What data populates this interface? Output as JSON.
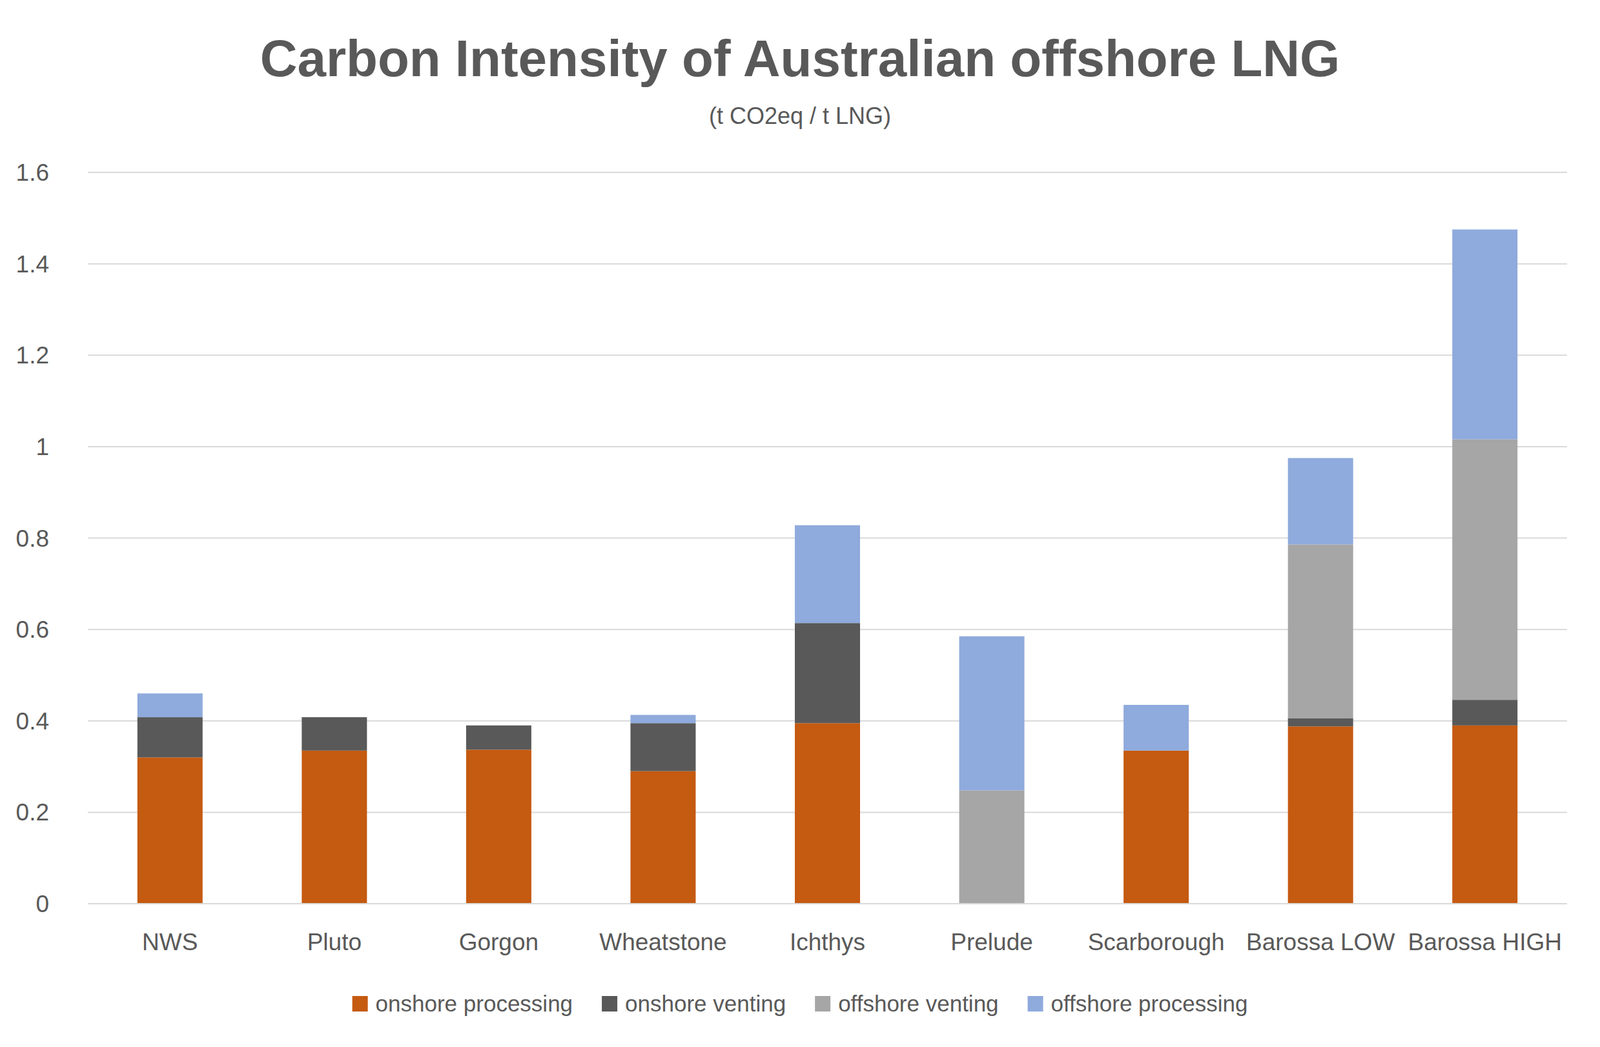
{
  "chart_data": {
    "type": "bar",
    "title": "Carbon Intensity of Australian offshore LNG",
    "subtitle": "(t CO2eq / t LNG)",
    "categories": [
      "NWS",
      "Pluto",
      "Gorgon",
      "Wheatstone",
      "Ichthys",
      "Prelude",
      "Scarborough",
      "Barossa LOW",
      "Barossa HIGH"
    ],
    "series": [
      {
        "name": "onshore processing",
        "color": "#c55a11",
        "values": [
          0.32,
          0.335,
          0.337,
          0.29,
          0.395,
          0,
          0.335,
          0.388,
          0.39
        ]
      },
      {
        "name": "onshore venting",
        "color": "#595959",
        "values": [
          0.088,
          0.073,
          0.053,
          0.105,
          0.219,
          0,
          0,
          0.018,
          0.056
        ]
      },
      {
        "name": "offshore venting",
        "color": "#a6a6a6",
        "values": [
          0,
          0,
          0,
          0,
          0,
          0.248,
          0,
          0.38,
          0.57
        ]
      },
      {
        "name": "offshore processing",
        "color": "#8faadc",
        "values": [
          0.052,
          0,
          0,
          0.018,
          0.214,
          0.337,
          0.1,
          0.189,
          0.459
        ]
      }
    ],
    "ylim": [
      0,
      1.6
    ],
    "yticks": [
      0,
      0.2,
      0.4,
      0.6,
      0.8,
      1,
      1.2,
      1.4,
      1.6
    ],
    "stacked": true,
    "grid": true,
    "legend": "bottom"
  }
}
